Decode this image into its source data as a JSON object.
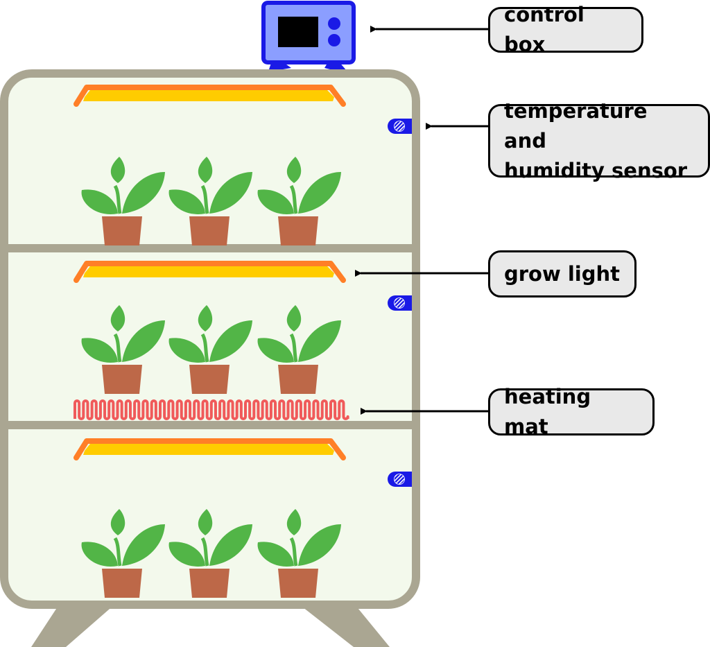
{
  "labels": {
    "control_box": "control box",
    "sensor": "temperature and\nhumidity sensor",
    "grow_light": "grow light",
    "heating_mat": "heating mat"
  },
  "colors": {
    "frame": "#aaa692",
    "interior": "#f3f9ec",
    "light_outer": "#ff7f27",
    "light_inner": "#ffcc00",
    "leaf": "#52b547",
    "pot": "#bd6848",
    "heating_mat": "#f05a5a",
    "control_box_fill": "#8b9eff",
    "control_box_border": "#1a1ae6",
    "sensor": "#1a1ae6",
    "callout_fill": "#e9e9e9"
  },
  "icons": [
    "control-box-icon",
    "sensor-icon",
    "grow-light-icon",
    "plant-icon",
    "heating-mat-icon"
  ]
}
